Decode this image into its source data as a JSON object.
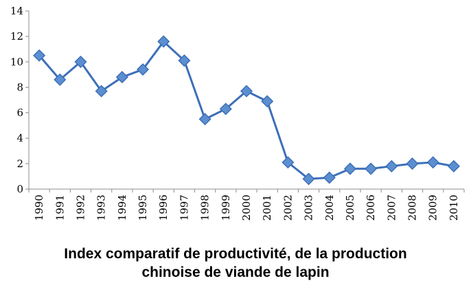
{
  "chart_data": {
    "type": "line",
    "title": "Index comparatif de productivité, de la production",
    "subtitle": "chinoise de viande de lapin",
    "xlabel": "",
    "ylabel": "",
    "ylim": [
      0,
      14
    ],
    "yticks": [
      0,
      2,
      4,
      6,
      8,
      10,
      12,
      14
    ],
    "grid": false,
    "legend": "none",
    "categories": [
      "1990",
      "1991",
      "1992",
      "1993",
      "1994",
      "1995",
      "1996",
      "1997",
      "1998",
      "1999",
      "2000",
      "2001",
      "2002",
      "2003",
      "2004",
      "2005",
      "2006",
      "2007",
      "2008",
      "2009",
      "2010"
    ],
    "series": [
      {
        "color": "#3d6fb8",
        "marker_color": "#5b8fd0",
        "marker": "diamond",
        "values": [
          10.5,
          8.6,
          10.0,
          7.7,
          8.8,
          9.4,
          11.6,
          10.1,
          5.5,
          6.3,
          7.7,
          6.9,
          2.1,
          0.8,
          0.9,
          1.6,
          1.6,
          1.8,
          2.0,
          2.1,
          1.8
        ]
      }
    ]
  }
}
